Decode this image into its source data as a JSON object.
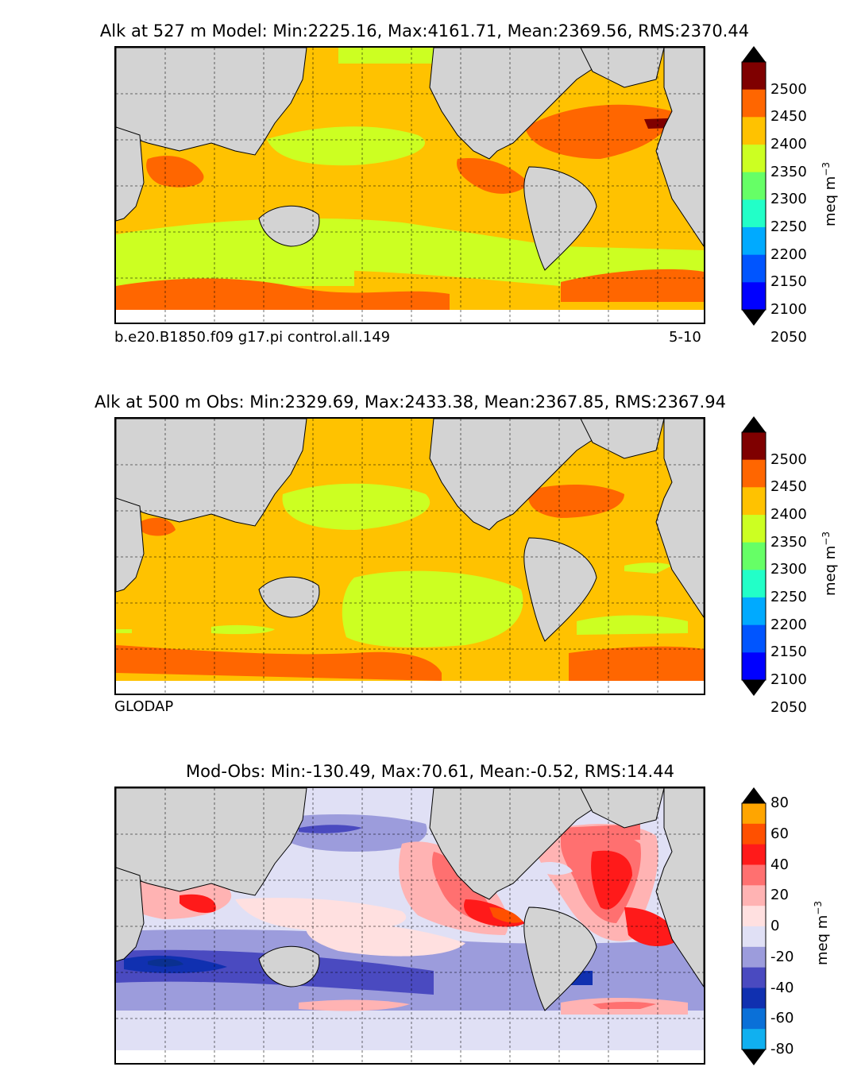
{
  "panels": [
    {
      "title": "Alk at 527 m Model: Min:2225.16, Max:4161.71, Mean:2369.56, RMS:2370.44",
      "left_note": "b.e20.B1850.f09 g17.pi control.all.149",
      "right_note": "5-10",
      "colorbar": {
        "unit": "meq m",
        "unit_sup": "−3",
        "labels": [
          "2500",
          "2450",
          "2400",
          "2350",
          "2300",
          "2250",
          "2200",
          "2150",
          "2100",
          "2050"
        ],
        "colors": [
          "#7f0000",
          "#ff1a00",
          "#ff6600",
          "#ffc200",
          "#ccff22",
          "#66ff66",
          "#22ffc8",
          "#00aaff",
          "#0055ff",
          "#0000ff",
          "#000080"
        ]
      }
    },
    {
      "title": "Alk at 500 m Obs: Min:2329.69, Max:2433.38, Mean:2367.85, RMS:2367.94",
      "left_note": "GLODAP",
      "colorbar": {
        "unit": "meq m",
        "unit_sup": "−3",
        "labels": [
          "2500",
          "2450",
          "2400",
          "2350",
          "2300",
          "2250",
          "2200",
          "2150",
          "2100",
          "2050"
        ],
        "colors": [
          "#7f0000",
          "#ff1a00",
          "#ff6600",
          "#ffc200",
          "#ccff22",
          "#66ff66",
          "#22ffc8",
          "#00aaff",
          "#0055ff",
          "#0000ff",
          "#000080"
        ]
      }
    },
    {
      "title": "Mod-Obs: Min:-130.49, Max:70.61, Mean:-0.52, RMS:14.44",
      "colorbar": {
        "unit": "meq m",
        "unit_sup": "−3",
        "labels": [
          "80",
          "60",
          "40",
          "20",
          "0",
          "-20",
          "-40",
          "-60",
          "-80"
        ],
        "colors": [
          "#ffff20",
          "#ffa500",
          "#ff5000",
          "#ff1a1a",
          "#ff7070",
          "#ffb3b3",
          "#ffe0e0",
          "#e0e0f5",
          "#9c9cdc",
          "#4a4ac0",
          "#1030b0",
          "#0a70d8",
          "#10b0f0",
          "#20ffff"
        ]
      }
    }
  ],
  "colors": {
    "land": "#d3d3d3",
    "no_data": "#ffffff",
    "frame": "#000000"
  }
}
